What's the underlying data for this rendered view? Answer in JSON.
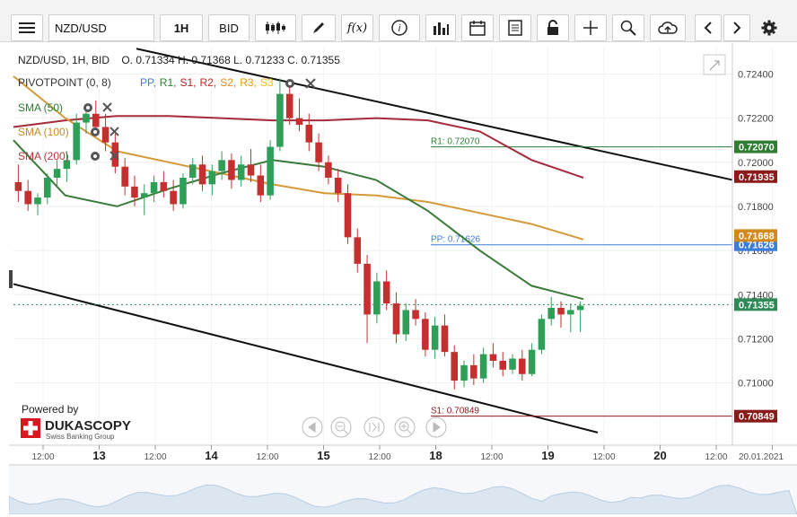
{
  "toolbar": {
    "menu_icon": "hamburger-icon",
    "symbol_value": "NZD/USD",
    "timeframe_label": "1H",
    "price_type_label": "BID",
    "icons": [
      "candles-icon",
      "pencil-icon",
      "function-icon",
      "info-icon",
      "bar-chart-icon",
      "calendar-icon",
      "report-icon",
      "lock-icon",
      "crosshair-icon",
      "zoom-icon",
      "cloud-upload-icon",
      "chevron-left-icon",
      "chevron-right-icon",
      "gear-icon"
    ]
  },
  "legend": {
    "ohlc": "NZD/USD, 1H, BID    O. 0.71334 H. 0.71368 L. 0.71233 C. 0.71355",
    "pivot_prefix": "PIVOTPOINT (0, 8)",
    "pivot_items": [
      {
        "text": "PP,",
        "color": "#3b7dd8"
      },
      {
        "text": "R1,",
        "color": "#2e7d32"
      },
      {
        "text": "S1,",
        "color": "#b71c1c"
      },
      {
        "text": "R2,",
        "color": "#c62828"
      },
      {
        "text": "S2,",
        "color": "#e08a1e"
      },
      {
        "text": "R3,",
        "color": "#e0a100"
      },
      {
        "text": "S3",
        "color": "#f2c200"
      }
    ],
    "sma": [
      {
        "label": "SMA (50)",
        "color": "#2e7d32"
      },
      {
        "label": "SMA (100)",
        "color": "#c58a2b"
      },
      {
        "label": "SMA (200)",
        "color": "#b03a3a"
      }
    ]
  },
  "branding": {
    "powered_by": "Powered by",
    "name": "DUKASCOPY",
    "tagline": "Swiss Banking Group"
  },
  "chart_data": {
    "type": "line",
    "title": "NZD/USD, 1H, BID",
    "ohlc_last": {
      "open": 0.71334,
      "high": 0.71368,
      "low": 0.71233,
      "close": 0.71355
    },
    "ylim": [
      0.7075,
      0.7252
    ],
    "y_ticks": [
      0.71,
      0.712,
      0.714,
      0.716,
      0.718,
      0.72,
      0.722,
      0.724
    ],
    "y_tick_labels": [
      "0.71000",
      "0.71200",
      "0.71400",
      "0.71600",
      "0.71800",
      "0.72000",
      "0.72200",
      "0.72400"
    ],
    "x_tick_labels": [
      "12:00",
      "13",
      "12:00",
      "14",
      "12:00",
      "15",
      "12:00",
      "18",
      "12:00",
      "19",
      "12:00",
      "20",
      "12:00",
      "20.01.2021"
    ],
    "grid": true,
    "levels": [
      {
        "name": "R1",
        "label": "R1: 0.72070",
        "value": 0.7207,
        "color": "#2e7d32",
        "badge": "0.72070"
      },
      {
        "name": "PP",
        "label": "PP: 0.71626",
        "value": 0.71626,
        "color": "#3b7dd8",
        "badge": "0.71626"
      },
      {
        "name": "S1",
        "label": "S1: 0.70849",
        "value": 0.70849,
        "color": "#8b1a1a",
        "badge": "0.70849"
      }
    ],
    "price_badges": [
      {
        "value": 0.71935,
        "text": "0.71935",
        "color": "#8b1a1a"
      },
      {
        "value": 0.71668,
        "text": "0.71668",
        "color": "#d4891f"
      },
      {
        "value": 0.71355,
        "text": "0.71355",
        "color": "#2e8b57"
      }
    ],
    "last_price": 0.71355,
    "sma_series": [
      {
        "name": "SMA (200)",
        "color": "#a52a3a",
        "values": [
          0.7216,
          0.7219,
          0.7221,
          0.7221,
          0.722,
          0.7219,
          0.7219,
          0.722,
          0.7219,
          0.7214,
          0.7201,
          0.7193
        ]
      },
      {
        "name": "SMA (100)",
        "color": "#d49a3a",
        "values": [
          0.7239,
          0.722,
          0.7205,
          0.72,
          0.7195,
          0.719,
          0.7186,
          0.7185,
          0.7182,
          0.7177,
          0.7172,
          0.7165
        ]
      },
      {
        "name": "SMA (50)",
        "color": "#3a7a3a",
        "values": [
          0.721,
          0.7185,
          0.718,
          0.7188,
          0.7195,
          0.7201,
          0.7198,
          0.7192,
          0.7178,
          0.716,
          0.7144,
          0.7138
        ]
      }
    ],
    "candles": [
      [
        0.7191,
        0.7199,
        0.7182,
        0.7187
      ],
      [
        0.7187,
        0.7192,
        0.7178,
        0.7181
      ],
      [
        0.7181,
        0.7186,
        0.7176,
        0.7184
      ],
      [
        0.7184,
        0.7195,
        0.7181,
        0.7193
      ],
      [
        0.7193,
        0.7201,
        0.7189,
        0.7197
      ],
      [
        0.7197,
        0.7205,
        0.7191,
        0.7201
      ],
      [
        0.7201,
        0.7222,
        0.7199,
        0.7218
      ],
      [
        0.7218,
        0.7226,
        0.7213,
        0.7222
      ],
      [
        0.7222,
        0.7228,
        0.7212,
        0.7216
      ],
      [
        0.7216,
        0.7222,
        0.7205,
        0.7209
      ],
      [
        0.7209,
        0.7213,
        0.7195,
        0.7198
      ],
      [
        0.7198,
        0.7202,
        0.7185,
        0.7189
      ],
      [
        0.7189,
        0.7194,
        0.718,
        0.7184
      ],
      [
        0.7184,
        0.719,
        0.7176,
        0.7186
      ],
      [
        0.7186,
        0.7194,
        0.7182,
        0.7191
      ],
      [
        0.7191,
        0.7196,
        0.7184,
        0.7187
      ],
      [
        0.7187,
        0.7192,
        0.7178,
        0.7181
      ],
      [
        0.7181,
        0.7195,
        0.7179,
        0.7193
      ],
      [
        0.7193,
        0.7202,
        0.719,
        0.7199
      ],
      [
        0.7199,
        0.7203,
        0.7187,
        0.719
      ],
      [
        0.719,
        0.7199,
        0.7185,
        0.7196
      ],
      [
        0.7196,
        0.7205,
        0.7192,
        0.7201
      ],
      [
        0.7201,
        0.7204,
        0.7188,
        0.7192
      ],
      [
        0.7192,
        0.7203,
        0.7189,
        0.7199
      ],
      [
        0.7199,
        0.7206,
        0.7191,
        0.7194
      ],
      [
        0.7194,
        0.7199,
        0.7182,
        0.7185
      ],
      [
        0.7185,
        0.721,
        0.7183,
        0.7207
      ],
      [
        0.7207,
        0.7238,
        0.7205,
        0.7231
      ],
      [
        0.7231,
        0.7236,
        0.7217,
        0.722
      ],
      [
        0.722,
        0.7229,
        0.7214,
        0.7217
      ],
      [
        0.7217,
        0.7222,
        0.7205,
        0.7209
      ],
      [
        0.7209,
        0.7213,
        0.7196,
        0.72
      ],
      [
        0.72,
        0.7203,
        0.719,
        0.7193
      ],
      [
        0.7193,
        0.7197,
        0.7182,
        0.7186
      ],
      [
        0.7186,
        0.719,
        0.7163,
        0.7166
      ],
      [
        0.7166,
        0.717,
        0.715,
        0.7154
      ],
      [
        0.7154,
        0.7158,
        0.7118,
        0.7131
      ],
      [
        0.7131,
        0.715,
        0.7127,
        0.7146
      ],
      [
        0.7146,
        0.7151,
        0.7133,
        0.7136
      ],
      [
        0.7136,
        0.7141,
        0.7118,
        0.7122
      ],
      [
        0.7122,
        0.7136,
        0.7119,
        0.7133
      ],
      [
        0.7133,
        0.7138,
        0.7126,
        0.7129
      ],
      [
        0.7129,
        0.7132,
        0.7112,
        0.7115
      ],
      [
        0.7115,
        0.713,
        0.7111,
        0.7126
      ],
      [
        0.7126,
        0.7131,
        0.7112,
        0.7114
      ],
      [
        0.7114,
        0.7117,
        0.7097,
        0.7101
      ],
      [
        0.7101,
        0.711,
        0.7098,
        0.7108
      ],
      [
        0.7108,
        0.7113,
        0.7099,
        0.7102
      ],
      [
        0.7102,
        0.7116,
        0.71,
        0.7113
      ],
      [
        0.7113,
        0.7118,
        0.7107,
        0.711
      ],
      [
        0.711,
        0.7114,
        0.7103,
        0.7106
      ],
      [
        0.7106,
        0.7113,
        0.7104,
        0.7111
      ],
      [
        0.7111,
        0.7115,
        0.7101,
        0.7104
      ],
      [
        0.7104,
        0.7118,
        0.7103,
        0.7115
      ],
      [
        0.7115,
        0.7131,
        0.7113,
        0.7129
      ],
      [
        0.7129,
        0.7139,
        0.7126,
        0.7134
      ],
      [
        0.7134,
        0.7137,
        0.7125,
        0.7131
      ],
      [
        0.7131,
        0.7136,
        0.7123,
        0.7133
      ],
      [
        0.7133,
        0.7137,
        0.7123,
        0.7135
      ]
    ]
  }
}
